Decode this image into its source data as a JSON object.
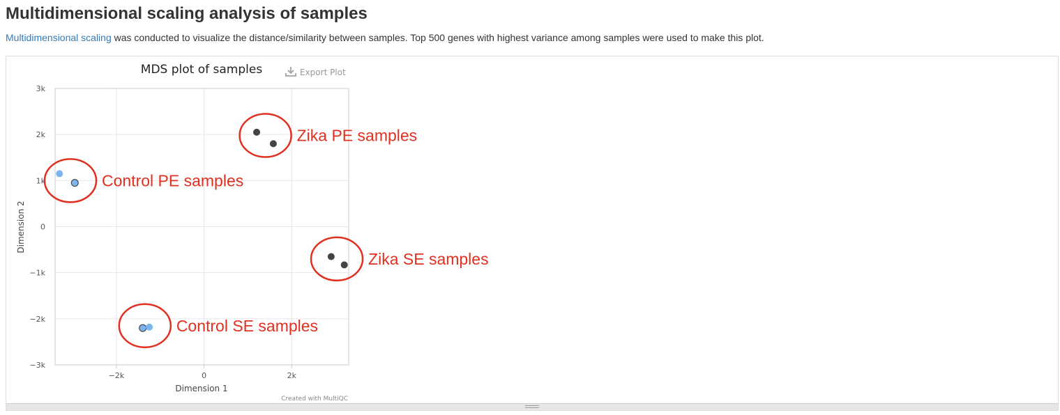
{
  "page": {
    "title": "Multidimensional scaling analysis of samples",
    "description_link": "Multidimensional scaling",
    "description_rest": " was conducted to visualize the distance/similarity between samples. Top 500 genes with highest variance among samples were used to make this plot."
  },
  "toolbar": {
    "export_label": "Export Plot",
    "export_icon": "download-icon"
  },
  "credits": "Created with MultiQC",
  "colors": {
    "light_blue": "#7cb5ec",
    "dark": "#434348",
    "annotation_red": "#e03020"
  },
  "chart_data": {
    "type": "scatter",
    "title": "MDS plot of samples",
    "xlabel": "Dimension 1",
    "ylabel": "Dimension 2",
    "xlim": [
      -3400,
      3300
    ],
    "ylim": [
      -3000,
      3000
    ],
    "x_ticks": [
      {
        "value": -2000,
        "label": "−2k"
      },
      {
        "value": 0,
        "label": "0"
      },
      {
        "value": 2000,
        "label": "2k"
      }
    ],
    "y_ticks": [
      {
        "value": 3000,
        "label": "3k"
      },
      {
        "value": 2000,
        "label": "2k"
      },
      {
        "value": 1000,
        "label": "1k"
      },
      {
        "value": 0,
        "label": "0"
      },
      {
        "value": -1000,
        "label": "−1k"
      },
      {
        "value": -2000,
        "label": "−2k"
      },
      {
        "value": -3000,
        "label": "−3k"
      }
    ],
    "grid": true,
    "points": [
      {
        "x": -3300,
        "y": 1150,
        "color": "#7cb5ec",
        "outlined": false
      },
      {
        "x": -2950,
        "y": 950,
        "color": "#7cb5ec",
        "outlined": true
      },
      {
        "x": 1200,
        "y": 2050,
        "color": "#434348",
        "outlined": false
      },
      {
        "x": 1580,
        "y": 1800,
        "color": "#434348",
        "outlined": false
      },
      {
        "x": 2900,
        "y": -650,
        "color": "#434348",
        "outlined": false
      },
      {
        "x": 3200,
        "y": -830,
        "color": "#434348",
        "outlined": false
      },
      {
        "x": -1400,
        "y": -2200,
        "color": "#7cb5ec",
        "outlined": true
      },
      {
        "x": -1250,
        "y": -2180,
        "color": "#7cb5ec",
        "outlined": false
      }
    ],
    "annotations": [
      {
        "text": "Control PE samples",
        "cx": -3050,
        "cy": 1000
      },
      {
        "text": "Zika PE samples",
        "cx": 1400,
        "cy": 1980
      },
      {
        "text": "Zika SE samples",
        "cx": 3030,
        "cy": -700
      },
      {
        "text": "Control SE samples",
        "cx": -1350,
        "cy": -2150
      }
    ]
  }
}
